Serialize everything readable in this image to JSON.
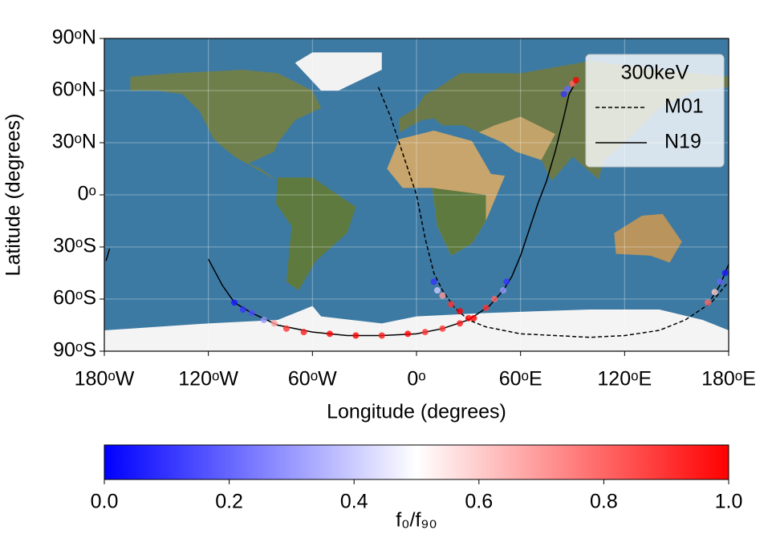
{
  "chart_data": {
    "type": "map",
    "xlabel": "Longitude (degrees)",
    "ylabel": "Latitude (degrees)",
    "xlim": [
      -180,
      180
    ],
    "ylim": [
      -90,
      90
    ],
    "xticks": [
      {
        "value": -180,
        "label": "180ᵒW"
      },
      {
        "value": -120,
        "label": "120ᵒW"
      },
      {
        "value": -60,
        "label": "60ᵒW"
      },
      {
        "value": 0,
        "label": "0ᵒ"
      },
      {
        "value": 60,
        "label": "60ᵒE"
      },
      {
        "value": 120,
        "label": "120ᵒE"
      },
      {
        "value": 180,
        "label": "180ᵒE"
      }
    ],
    "yticks": [
      {
        "value": 90,
        "label": "90ᵒN"
      },
      {
        "value": 60,
        "label": "60ᵒN"
      },
      {
        "value": 30,
        "label": "30ᵒN"
      },
      {
        "value": 0,
        "label": "0ᵒ"
      },
      {
        "value": -30,
        "label": "30ᵒS"
      },
      {
        "value": -60,
        "label": "60ᵒS"
      },
      {
        "value": -90,
        "label": "90ᵒS"
      }
    ],
    "legend": {
      "title": "300keV",
      "position": "upper right"
    },
    "series": [
      {
        "name": "M01",
        "style": "dashed",
        "color": "#000000",
        "x": [
          -22,
          -15,
          -10,
          -5,
          0,
          5,
          10,
          15,
          22,
          30,
          40,
          60,
          80,
          100,
          120,
          140,
          155,
          170,
          180
        ],
        "y": [
          62,
          45,
          30,
          15,
          0,
          -25,
          -45,
          -55,
          -65,
          -72,
          -76,
          -80,
          -81,
          -82,
          -81,
          -78,
          -72,
          -62,
          -50
        ]
      },
      {
        "name": "N19",
        "style": "solid",
        "color": "#000000",
        "x": [
          -120,
          -112,
          -105,
          -95,
          -80,
          -60,
          -40,
          -20,
          0,
          15,
          30,
          42,
          50,
          55,
          60,
          65,
          70,
          75,
          80,
          85,
          88,
          92,
          null,
          170,
          175,
          180,
          null,
          -179,
          -177
        ],
        "y": [
          -37,
          -52,
          -62,
          -68,
          -75,
          -79,
          -81,
          -81,
          -80,
          -77,
          -72,
          -64,
          -55,
          -47,
          -35,
          -20,
          -5,
          8,
          25,
          45,
          58,
          65,
          null,
          -60,
          -52,
          -40,
          null,
          -38,
          -31
        ]
      }
    ],
    "points": {
      "cmap": "bwr",
      "x": [
        -105,
        -100,
        -95,
        -88,
        -82,
        -75,
        -65,
        -50,
        -35,
        -20,
        -5,
        5,
        15,
        25,
        33,
        40,
        45,
        50,
        52,
        10,
        12,
        15,
        20,
        25,
        30,
        85,
        87,
        90,
        92,
        168,
        172,
        175,
        178
      ],
      "y": [
        -62,
        -66,
        -68,
        -72,
        -74,
        -77,
        -79,
        -80,
        -81,
        -81,
        -80,
        -79,
        -77,
        -74,
        -71,
        -65,
        -60,
        -55,
        -50,
        -50,
        -55,
        -58,
        -63,
        -67,
        -71,
        58,
        61,
        64,
        66,
        -62,
        -56,
        -50,
        -45
      ],
      "values": [
        0.05,
        0.1,
        0.15,
        0.3,
        0.7,
        0.9,
        0.95,
        1,
        1,
        0.95,
        1,
        0.9,
        0.9,
        0.95,
        1,
        0.9,
        0.8,
        0.3,
        0.1,
        0.1,
        0.4,
        0.7,
        0.9,
        1,
        1,
        0.1,
        0.2,
        0.8,
        1,
        0.8,
        0.6,
        0.2,
        0.05
      ]
    },
    "colorbar": {
      "label": "f₀/f₉₀",
      "clim": [
        0,
        1
      ],
      "ticks": [
        {
          "value": 0,
          "label": "0.0"
        },
        {
          "value": 0.2,
          "label": "0.2"
        },
        {
          "value": 0.4,
          "label": "0.4"
        },
        {
          "value": 0.6,
          "label": "0.6"
        },
        {
          "value": 0.8,
          "label": "0.8"
        },
        {
          "value": 1,
          "label": "1.0"
        }
      ]
    }
  }
}
